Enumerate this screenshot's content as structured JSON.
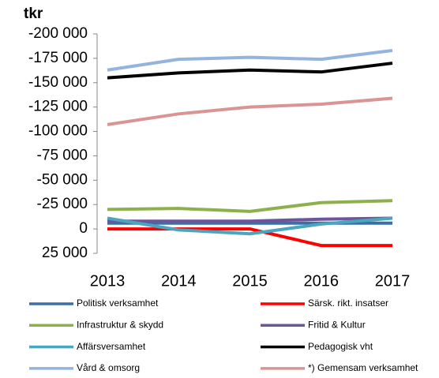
{
  "chart_data": {
    "type": "line",
    "y_label": "tkr",
    "categories": [
      "2013",
      "2014",
      "2015",
      "2016",
      "2017"
    ],
    "ylim": [
      -200000,
      25000
    ],
    "y_inverted": true,
    "yticks": [
      {
        "value": -200000,
        "label": "-200 000"
      },
      {
        "value": -175000,
        "label": "-175 000"
      },
      {
        "value": -150000,
        "label": "-150 000"
      },
      {
        "value": -125000,
        "label": "-125 000"
      },
      {
        "value": -100000,
        "label": "-100 000"
      },
      {
        "value": -75000,
        "label": "-75 000"
      },
      {
        "value": -50000,
        "label": "-50 000"
      },
      {
        "value": -25000,
        "label": "-25 000"
      },
      0,
      {
        "value": 25000,
        "label": "25 000"
      }
    ],
    "series": [
      {
        "name": "Politisk verksamhet",
        "color": "#3a6ea5",
        "values": [
          -6000,
          -6000,
          -6000,
          -6000,
          -6000
        ]
      },
      {
        "name": "Särsk. rikt. insatser",
        "color": "#ff0000",
        "values": [
          0,
          0,
          0,
          17000,
          17000
        ]
      },
      {
        "name": "Infrastruktur & skydd",
        "color": "#8db04b",
        "values": [
          -20000,
          -21000,
          -18000,
          -27000,
          -29000
        ]
      },
      {
        "name": "Fritid & Kultur",
        "color": "#6e559a",
        "values": [
          -8000,
          -8000,
          -8000,
          -10000,
          -11000
        ]
      },
      {
        "name": "Affärsversamhet",
        "color": "#4aa5bf",
        "values": [
          -11000,
          1000,
          5000,
          -5000,
          -11000
        ]
      },
      {
        "name": "Pedagogisk vht",
        "color": "#000000",
        "values": [
          -155000,
          -160000,
          -163000,
          -161000,
          -170000
        ]
      },
      {
        "name": "Vård & omsorg",
        "color": "#94b3dd",
        "values": [
          -163000,
          -174000,
          -176000,
          -174000,
          -183000
        ]
      },
      {
        "name": "*) Gemensam verksamhet",
        "color": "#d99594",
        "values": [
          -107000,
          -118000,
          -125000,
          -128000,
          -134000
        ]
      }
    ]
  }
}
